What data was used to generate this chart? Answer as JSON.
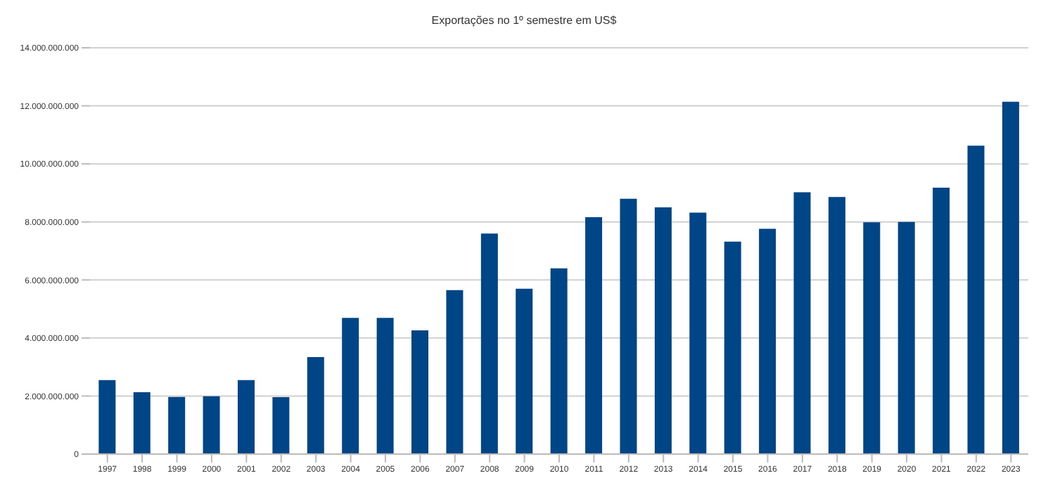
{
  "chart_data": {
    "type": "bar",
    "title": "Exportações no 1º semestre em US$",
    "categories": [
      "1997",
      "1998",
      "1999",
      "2000",
      "2001",
      "2002",
      "2003",
      "2004",
      "2005",
      "2006",
      "2007",
      "2008",
      "2009",
      "2010",
      "2011",
      "2012",
      "2013",
      "2014",
      "2015",
      "2016",
      "2017",
      "2018",
      "2019",
      "2020",
      "2021",
      "2022",
      "2023"
    ],
    "values": [
      2550000000,
      2130000000,
      1970000000,
      1990000000,
      2550000000,
      1960000000,
      3340000000,
      4690000000,
      4690000000,
      4260000000,
      5650000000,
      7600000000,
      5700000000,
      6400000000,
      8160000000,
      8800000000,
      8500000000,
      8320000000,
      7320000000,
      7760000000,
      9020000000,
      8860000000,
      7990000000,
      8000000000,
      9180000000,
      10630000000,
      12140000000
    ],
    "color": "#004586",
    "ylim": [
      0,
      14000000000
    ],
    "yticks": [
      {
        "value": 0,
        "label": "0"
      },
      {
        "value": 2000000000,
        "label": "2.000.000.000"
      },
      {
        "value": 4000000000,
        "label": "4.000.000.000"
      },
      {
        "value": 6000000000,
        "label": "6.000.000.000"
      },
      {
        "value": 8000000000,
        "label": "8.000.000.000"
      },
      {
        "value": 10000000000,
        "label": "10.000.000.000"
      },
      {
        "value": 12000000000,
        "label": "12.000.000.000"
      },
      {
        "value": 14000000000,
        "label": "14.000.000.000"
      }
    ],
    "grid": "y"
  }
}
